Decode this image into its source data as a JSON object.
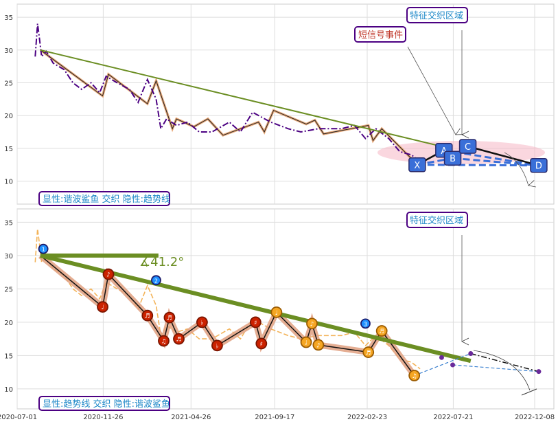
{
  "colors": {
    "price": "#4b0082",
    "trend": "#6b8e23",
    "wave": "#d2691e",
    "orange_band": "#f0a030",
    "red_node": "#cc2200",
    "orange_node": "#f5a623",
    "blue_node": "#1e90ff",
    "box_blue": "#3a6fd8",
    "label_border": "#4b0082",
    "label_text_blue": "#1e88c8",
    "label_text_red": "#c0392b",
    "highlight": "#f5b7c5"
  },
  "chart_data": [
    {
      "type": "line",
      "panel": "top",
      "ylim": [
        6.5,
        37
      ],
      "yticks": [
        10,
        15,
        20,
        25,
        30,
        35
      ],
      "grid": true,
      "legend_box": "显性:谐波鲨鱼 交织 隐性:趋势线",
      "annotations": [
        "短信号事件",
        "特征交织区域"
      ],
      "pattern_labels": [
        "X",
        "A",
        "B",
        "C",
        "D"
      ],
      "price_series": [
        {
          "x": "2020-08-01",
          "y": 29.0
        },
        {
          "x": "2020-08-05",
          "y": 34.0
        },
        {
          "x": "2020-08-08",
          "y": 32.0
        },
        {
          "x": "2020-08-12",
          "y": 29.0
        },
        {
          "x": "2020-08-20",
          "y": 29.8
        },
        {
          "x": "2020-09-01",
          "y": 28.0
        },
        {
          "x": "2020-09-20",
          "y": 27.0
        },
        {
          "x": "2020-10-05",
          "y": 25.0
        },
        {
          "x": "2020-10-20",
          "y": 24.0
        },
        {
          "x": "2020-11-05",
          "y": 25.0
        },
        {
          "x": "2020-11-20",
          "y": 23.5
        },
        {
          "x": "2020-12-01",
          "y": 26.0
        },
        {
          "x": "2020-12-20",
          "y": 25.0
        },
        {
          "x": "2021-01-10",
          "y": 24.0
        },
        {
          "x": "2021-01-25",
          "y": 22.0
        },
        {
          "x": "2021-02-10",
          "y": 25.5
        },
        {
          "x": "2021-02-25",
          "y": 22.5
        },
        {
          "x": "2021-03-05",
          "y": 18.0
        },
        {
          "x": "2021-03-15",
          "y": 19.5
        },
        {
          "x": "2021-04-01",
          "y": 18.5
        },
        {
          "x": "2021-04-20",
          "y": 19.0
        },
        {
          "x": "2021-05-10",
          "y": 17.5
        },
        {
          "x": "2021-06-01",
          "y": 17.5
        },
        {
          "x": "2021-07-01",
          "y": 19.0
        },
        {
          "x": "2021-07-20",
          "y": 17.5
        },
        {
          "x": "2021-08-10",
          "y": 20.5
        },
        {
          "x": "2021-09-10",
          "y": 19.0
        },
        {
          "x": "2021-10-10",
          "y": 18.0
        },
        {
          "x": "2021-11-01",
          "y": 17.5
        },
        {
          "x": "2021-12-01",
          "y": 18.0
        },
        {
          "x": "2022-01-10",
          "y": 18.0
        },
        {
          "x": "2022-02-01",
          "y": 18.5
        },
        {
          "x": "2022-02-20",
          "y": 16.5
        },
        {
          "x": "2022-03-10",
          "y": 18.0
        },
        {
          "x": "2022-04-01",
          "y": 16.5
        },
        {
          "x": "2022-04-20",
          "y": 14.5
        },
        {
          "x": "2022-05-10",
          "y": 14.0
        },
        {
          "x": "2022-05-25",
          "y": 13.0
        }
      ],
      "trend_line": [
        {
          "x": "2020-08-10",
          "y": 30.0
        },
        {
          "x": "2022-07-15",
          "y": 15.0
        }
      ],
      "wave_path": [
        {
          "x": "2020-08-10",
          "y": 30.0
        },
        {
          "x": "2020-11-25",
          "y": 23.0
        },
        {
          "x": "2020-12-05",
          "y": 26.3
        },
        {
          "x": "2021-02-10",
          "y": 21.8
        },
        {
          "x": "2021-02-25",
          "y": 25.3
        },
        {
          "x": "2021-03-25",
          "y": 18.0
        },
        {
          "x": "2021-04-01",
          "y": 19.5
        },
        {
          "x": "2021-05-01",
          "y": 18.3
        },
        {
          "x": "2021-05-25",
          "y": 19.5
        },
        {
          "x": "2021-06-20",
          "y": 17.0
        },
        {
          "x": "2021-08-20",
          "y": 19.0
        },
        {
          "x": "2021-08-30",
          "y": 17.5
        },
        {
          "x": "2021-09-15",
          "y": 20.8
        },
        {
          "x": "2021-11-10",
          "y": 18.7
        },
        {
          "x": "2021-11-25",
          "y": 19.3
        },
        {
          "x": "2021-12-10",
          "y": 17.2
        },
        {
          "x": "2022-02-25",
          "y": 18.5
        },
        {
          "x": "2022-03-05",
          "y": 16.2
        },
        {
          "x": "2022-03-20",
          "y": 18.0
        },
        {
          "x": "2022-05-15",
          "y": 13.0
        }
      ],
      "harmonic": [
        {
          "label": "X",
          "x": "2022-05-20",
          "y": 12.5
        },
        {
          "label": "A",
          "x": "2022-07-05",
          "y": 14.7
        },
        {
          "label": "B",
          "x": "2022-07-20",
          "y": 13.5
        },
        {
          "label": "C",
          "x": "2022-08-15",
          "y": 15.3
        },
        {
          "label": "D",
          "x": "2022-12-15",
          "y": 12.4
        }
      ]
    },
    {
      "type": "line",
      "panel": "bottom",
      "ylim": [
        7,
        37
      ],
      "yticks": [
        10,
        15,
        20,
        25,
        30,
        35
      ],
      "grid": true,
      "xticks": [
        "2020-07-01",
        "2020-11-26",
        "2021-04-26",
        "2021-09-17",
        "2022-02-23",
        "2022-07-21",
        "2022-12-08"
      ],
      "legend_box": "显性:趋势线 交织 隐性:谐波鲨鱼",
      "annotations": [
        "特征交织区域"
      ],
      "angle_label": "∡41.2°",
      "trend_line": [
        {
          "x": "2020-08-10",
          "y": 30.0
        },
        {
          "x": "2022-08-20",
          "y": 14.2
        }
      ],
      "horizontal_ref": [
        {
          "x": "2020-08-10",
          "y": 30.0
        },
        {
          "x": "2021-03-01",
          "y": 30.0
        }
      ],
      "pivots": [
        {
          "x": "2020-08-15",
          "y": 31.0,
          "kind": "blue",
          "label": "1"
        },
        {
          "x": "2020-11-25",
          "y": 22.3,
          "kind": "red",
          "label": "♩"
        },
        {
          "x": "2020-12-05",
          "y": 27.2,
          "kind": "red",
          "label": "♪"
        },
        {
          "x": "2021-02-10",
          "y": 21.0,
          "kind": "red",
          "label": "♬"
        },
        {
          "x": "2021-02-25",
          "y": 26.3,
          "kind": "blue",
          "label": "2"
        },
        {
          "x": "2021-03-10",
          "y": 17.2,
          "kind": "red",
          "label": "♫"
        },
        {
          "x": "2021-03-20",
          "y": 20.7,
          "kind": "red",
          "label": "♬"
        },
        {
          "x": "2021-04-05",
          "y": 17.5,
          "kind": "red",
          "label": "♬"
        },
        {
          "x": "2021-05-15",
          "y": 20.0,
          "kind": "red",
          "label": "♭"
        },
        {
          "x": "2021-06-10",
          "y": 16.5,
          "kind": "red",
          "label": "♭"
        },
        {
          "x": "2021-08-15",
          "y": 20.0,
          "kind": "red",
          "label": "♯"
        },
        {
          "x": "2021-08-25",
          "y": 16.8,
          "kind": "red",
          "label": "♯"
        },
        {
          "x": "2021-09-20",
          "y": 21.5,
          "kind": "orange",
          "label": "♩"
        },
        {
          "x": "2021-11-10",
          "y": 17.0,
          "kind": "orange",
          "label": "♩"
        },
        {
          "x": "2021-11-20",
          "y": 19.8,
          "kind": "orange",
          "label": "♪"
        },
        {
          "x": "2021-12-01",
          "y": 16.6,
          "kind": "orange",
          "label": "♪"
        },
        {
          "x": "2022-02-20",
          "y": 19.8,
          "kind": "blue",
          "label": "3"
        },
        {
          "x": "2022-02-25",
          "y": 15.5,
          "kind": "orange",
          "label": "♬"
        },
        {
          "x": "2022-03-20",
          "y": 18.7,
          "kind": "orange",
          "label": "♬"
        },
        {
          "x": "2022-05-15",
          "y": 12.0,
          "kind": "orange",
          "label": "♫"
        }
      ],
      "harmonic_dots": [
        {
          "x": "2022-07-01",
          "y": 14.7
        },
        {
          "x": "2022-07-20",
          "y": 13.6
        },
        {
          "x": "2022-08-20",
          "y": 15.3
        },
        {
          "x": "2022-12-15",
          "y": 12.6
        }
      ]
    }
  ]
}
